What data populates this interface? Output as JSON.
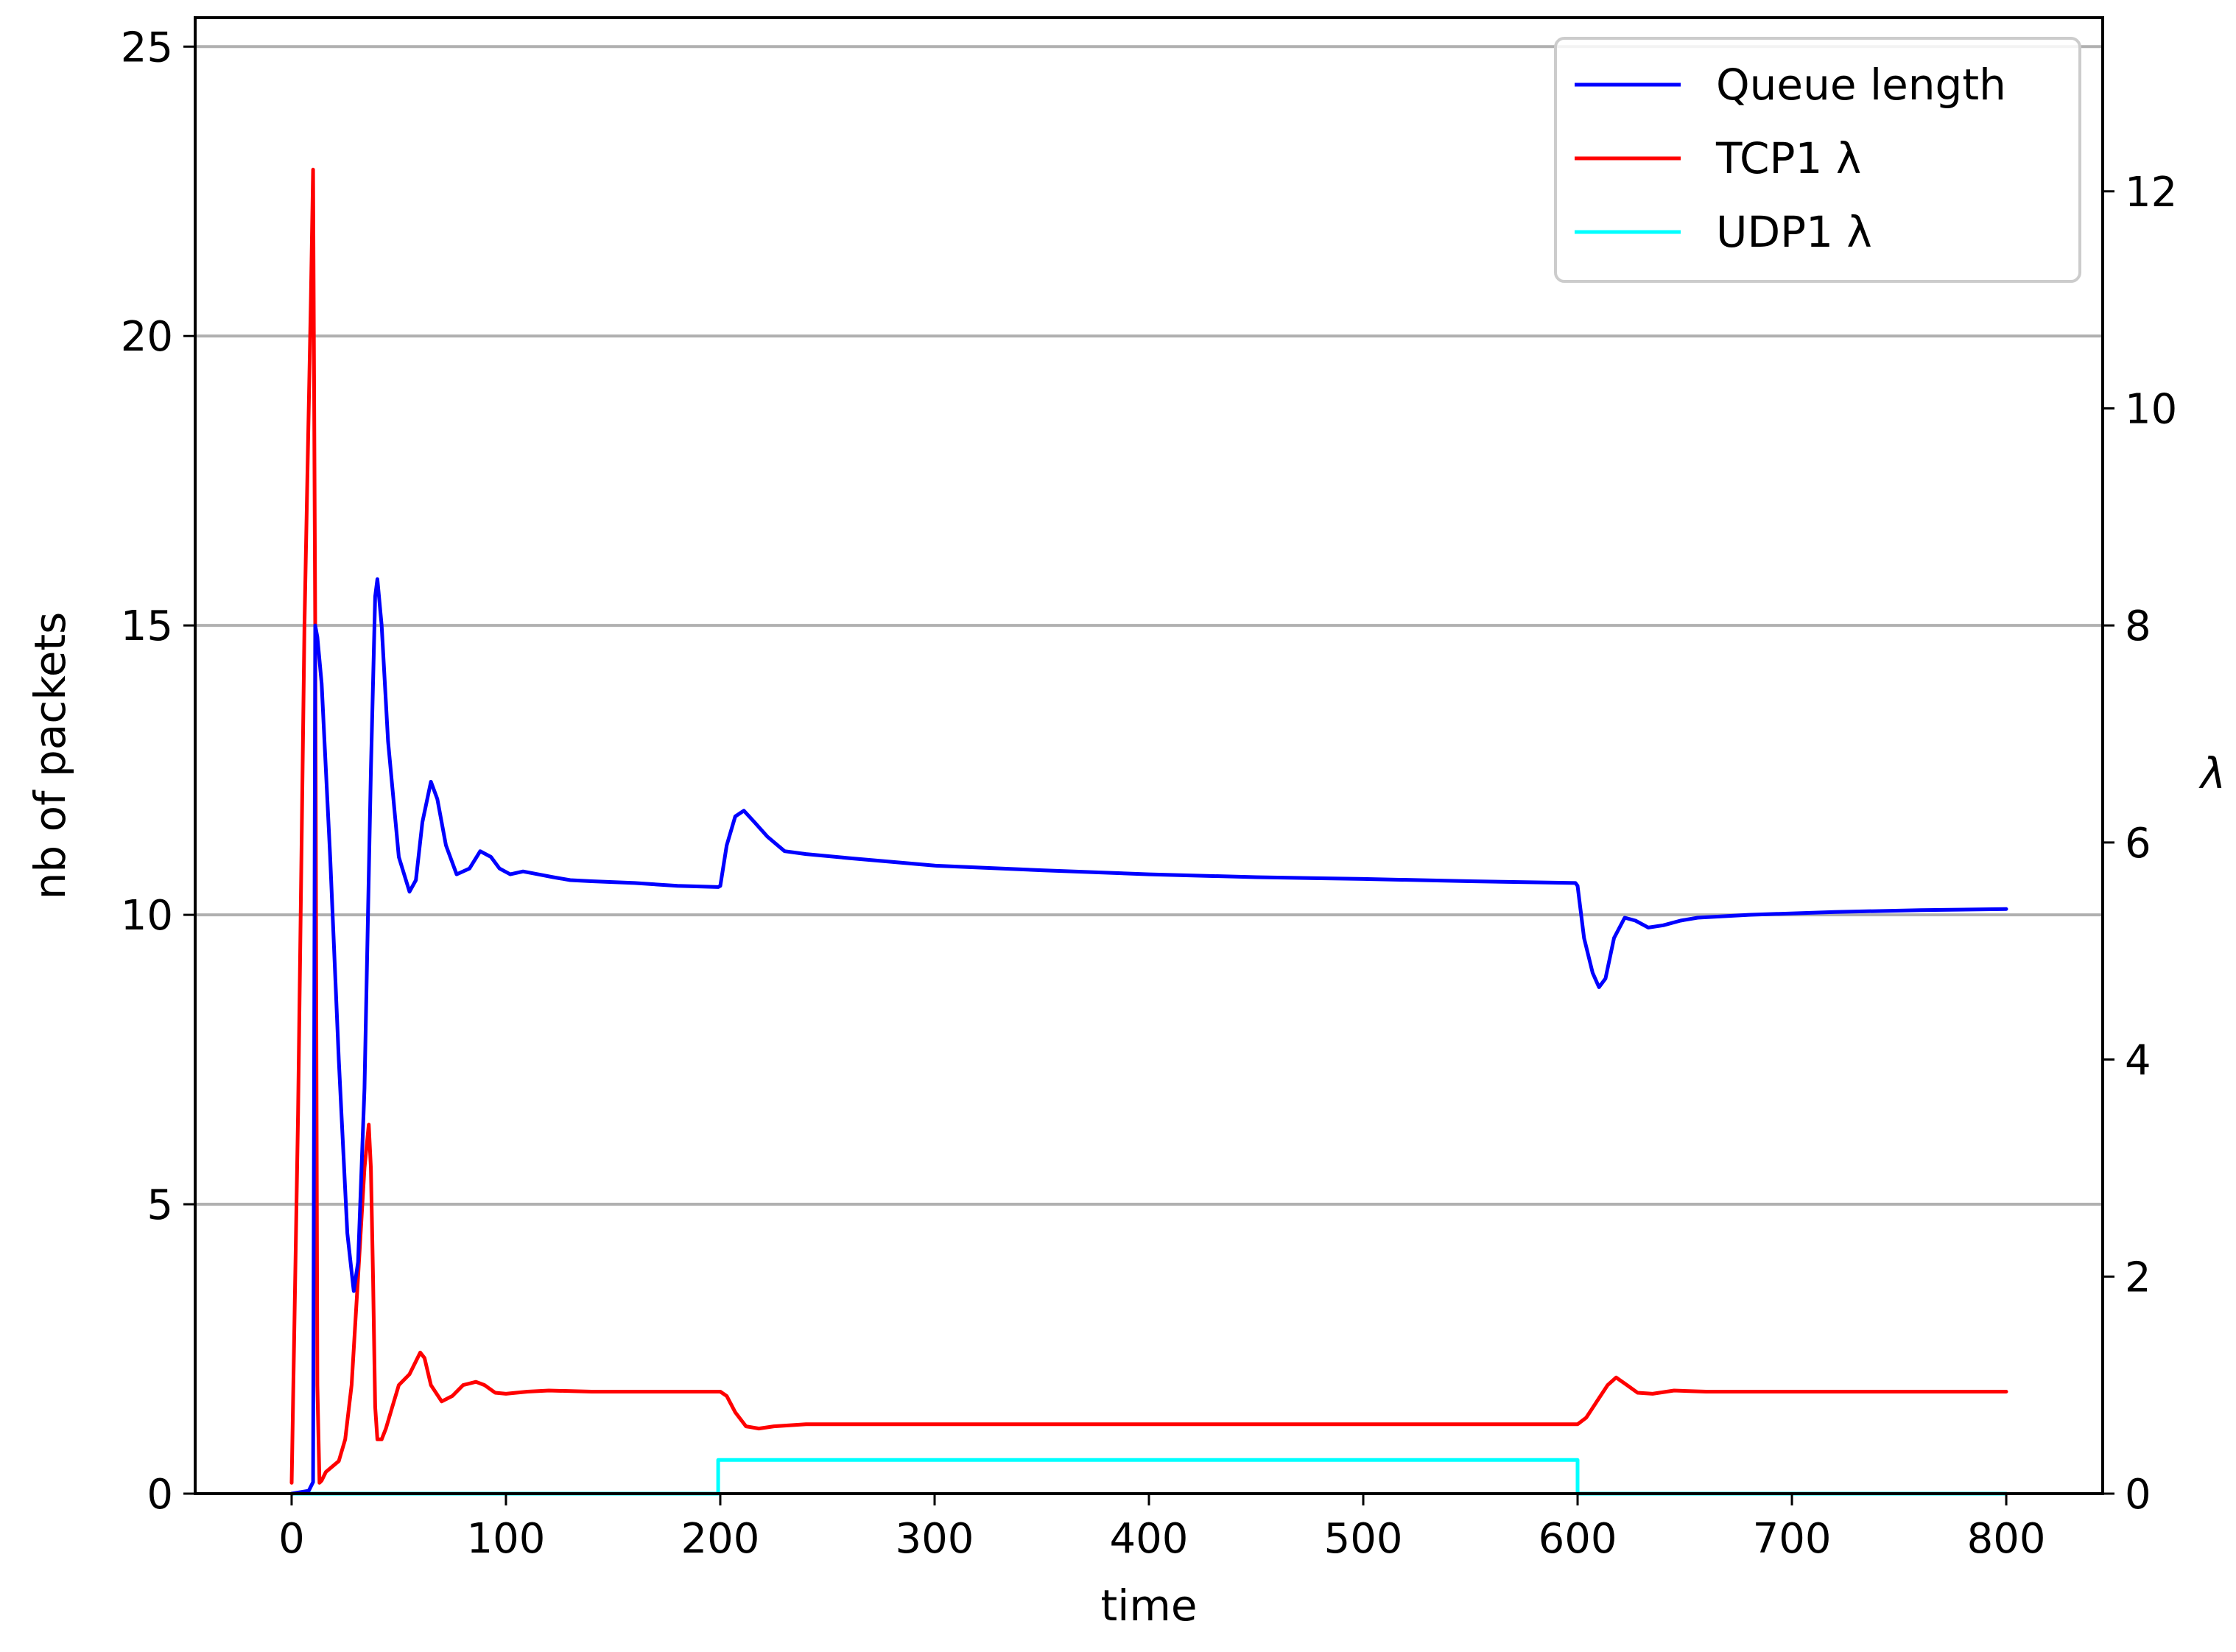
{
  "chart_data": {
    "type": "line",
    "title": "",
    "xlabel": "time",
    "ylabel": "nb of packets",
    "y2label": "λ",
    "xlim": [
      -45,
      845
    ],
    "ylim": [
      0,
      25.5
    ],
    "y2lim": [
      0,
      13.6
    ],
    "xticks": [
      0,
      100,
      200,
      300,
      400,
      500,
      600,
      700,
      800
    ],
    "yticks": [
      0,
      5,
      10,
      15,
      20,
      25
    ],
    "y2ticks": [
      0,
      2,
      4,
      6,
      8,
      10,
      12
    ],
    "grid": "horizontal, left axis",
    "legend": "top-right",
    "series": [
      {
        "name": "Queue length",
        "axis": "left",
        "color": "#0000ff",
        "x": [
          0,
          8,
          10,
          11,
          12,
          14,
          18,
          22,
          26,
          29,
          31,
          34,
          37,
          39,
          40,
          42,
          45,
          50,
          55,
          58,
          61,
          65,
          68,
          72,
          77,
          83,
          88,
          93,
          97,
          102,
          108,
          115,
          122,
          130,
          140,
          160,
          180,
          199,
          200,
          203,
          207,
          211,
          216,
          222,
          230,
          240,
          260,
          300,
          350,
          400,
          450,
          500,
          550,
          599,
          600,
          603,
          607,
          610,
          613,
          617,
          622,
          627,
          633,
          640,
          648,
          656,
          680,
          720,
          760,
          800
        ],
        "y": [
          0,
          0.05,
          0.2,
          15,
          14.8,
          14,
          11,
          7.5,
          4.5,
          3.5,
          4,
          7,
          12.5,
          15.5,
          15.8,
          15,
          13,
          11,
          10.4,
          10.6,
          11.6,
          12.3,
          12,
          11.2,
          10.7,
          10.8,
          11.1,
          11,
          10.8,
          10.7,
          10.75,
          10.7,
          10.65,
          10.6,
          10.58,
          10.55,
          10.5,
          10.48,
          10.5,
          11.2,
          11.7,
          11.8,
          11.6,
          11.35,
          11.1,
          11.05,
          10.98,
          10.85,
          10.77,
          10.7,
          10.65,
          10.62,
          10.58,
          10.55,
          10.5,
          9.6,
          9,
          8.75,
          8.9,
          9.6,
          9.95,
          9.9,
          9.78,
          9.82,
          9.9,
          9.95,
          10,
          10.05,
          10.08,
          10.1
        ]
      },
      {
        "name": "TCP1 λ",
        "axis": "right",
        "color": "#ff0000",
        "x": [
          0,
          3,
          6,
          9,
          10,
          11,
          12,
          13,
          14,
          16,
          19,
          22,
          25,
          28,
          31,
          34,
          36,
          37,
          38,
          39,
          40,
          42,
          44,
          47,
          50,
          55,
          60,
          62,
          65,
          70,
          75,
          80,
          86,
          90,
          95,
          100,
          110,
          120,
          140,
          160,
          180,
          199,
          200,
          203,
          207,
          212,
          218,
          225,
          240,
          300,
          400,
          500,
          599,
          600,
          604,
          609,
          614,
          618,
          623,
          628,
          635,
          645,
          660,
          700,
          750,
          800
        ],
        "y": [
          0.1,
          3.5,
          8,
          11,
          12.2,
          8,
          1,
          0.1,
          0.12,
          0.2,
          0.25,
          0.3,
          0.5,
          1,
          2,
          3,
          3.4,
          3,
          2,
          0.8,
          0.5,
          0.5,
          0.6,
          0.8,
          1,
          1.1,
          1.3,
          1.25,
          1,
          0.85,
          0.9,
          1,
          1.03,
          1,
          0.93,
          0.92,
          0.94,
          0.95,
          0.94,
          0.94,
          0.94,
          0.94,
          0.94,
          0.9,
          0.75,
          0.62,
          0.6,
          0.62,
          0.64,
          0.64,
          0.64,
          0.64,
          0.64,
          0.64,
          0.7,
          0.85,
          1,
          1.07,
          1,
          0.93,
          0.92,
          0.95,
          0.94,
          0.94,
          0.94,
          0.94
        ]
      },
      {
        "name": "UDP1 λ",
        "axis": "right",
        "color": "#00ffff",
        "x": [
          0,
          199,
          199,
          600,
          600,
          800
        ],
        "y": [
          0,
          0,
          0.31,
          0.31,
          0,
          0
        ]
      }
    ]
  }
}
